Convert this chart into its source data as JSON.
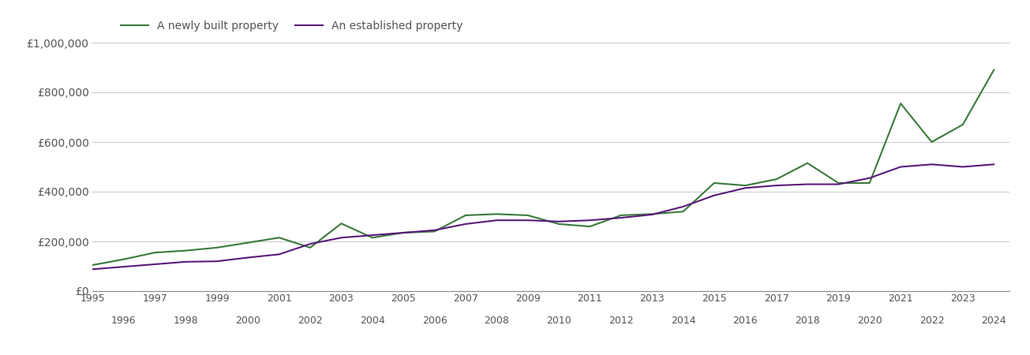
{
  "legend_labels": [
    "A newly built property",
    "An established property"
  ],
  "line_color_new": "#3a7a3a",
  "line_color_est": "#5a1a7a",
  "background_color": "#ffffff",
  "grid_color": "#cccccc",
  "tick_label_color": "#555555",
  "ylim": [
    0,
    1000000
  ],
  "yticks": [
    0,
    200000,
    400000,
    600000,
    800000,
    1000000
  ],
  "ytick_labels": [
    "£0",
    "£200,000",
    "£400,000",
    "£600,000",
    "£800,000",
    "£1,000,000"
  ],
  "years_new": [
    1995,
    1996,
    1997,
    1998,
    1999,
    2000,
    2001,
    2002,
    2003,
    2004,
    2005,
    2006,
    2007,
    2008,
    2009,
    2010,
    2011,
    2012,
    2013,
    2014,
    2015,
    2016,
    2017,
    2018,
    2019,
    2020,
    2021,
    2022,
    2023,
    2024
  ],
  "values_new": [
    105000,
    128000,
    155000,
    163000,
    175000,
    195000,
    215000,
    175000,
    272000,
    215000,
    235000,
    240000,
    305000,
    310000,
    305000,
    270000,
    260000,
    305000,
    310000,
    320000,
    435000,
    425000,
    450000,
    515000,
    435000,
    435000,
    755000,
    600000,
    670000,
    890000
  ],
  "years_est": [
    1995,
    1996,
    1997,
    1998,
    1999,
    2000,
    2001,
    2002,
    2003,
    2004,
    2005,
    2006,
    2007,
    2008,
    2009,
    2010,
    2011,
    2012,
    2013,
    2014,
    2015,
    2016,
    2017,
    2018,
    2019,
    2020,
    2021,
    2022,
    2023,
    2024
  ],
  "values_est": [
    88000,
    98000,
    108000,
    118000,
    120000,
    135000,
    148000,
    190000,
    215000,
    225000,
    235000,
    245000,
    270000,
    285000,
    285000,
    280000,
    285000,
    295000,
    308000,
    340000,
    385000,
    415000,
    425000,
    430000,
    430000,
    455000,
    500000,
    510000,
    500000,
    510000
  ],
  "xtick_odd": [
    1995,
    1997,
    1999,
    2001,
    2003,
    2005,
    2007,
    2009,
    2011,
    2013,
    2015,
    2017,
    2019,
    2021,
    2023
  ],
  "xtick_even": [
    1996,
    1998,
    2000,
    2002,
    2004,
    2006,
    2008,
    2010,
    2012,
    2014,
    2016,
    2018,
    2020,
    2022,
    2024
  ],
  "xlim_left": 1995,
  "xlim_right": 2024.5
}
